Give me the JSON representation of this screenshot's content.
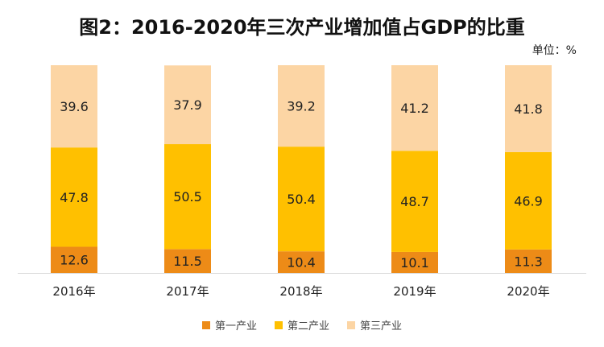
{
  "chart_data": {
    "type": "bar",
    "stacked": true,
    "title": "图2：2016-2020年三次产业增加值占GDP的比重",
    "unit": "单位：%",
    "categories": [
      "2016年",
      "2017年",
      "2018年",
      "2019年",
      "2020年"
    ],
    "series": [
      {
        "name": "第一产业",
        "values": [
          12.6,
          11.5,
          10.4,
          10.1,
          11.3
        ],
        "color": "#ED8B17"
      },
      {
        "name": "第二产业",
        "values": [
          47.8,
          50.5,
          50.4,
          48.7,
          46.9
        ],
        "color": "#FFC000"
      },
      {
        "name": "第三产业",
        "values": [
          39.6,
          37.9,
          39.2,
          41.2,
          41.8
        ],
        "color": "#FCD5A4"
      }
    ],
    "ylim": [
      0,
      100
    ],
    "grid": false,
    "legend_position": "bottom"
  }
}
